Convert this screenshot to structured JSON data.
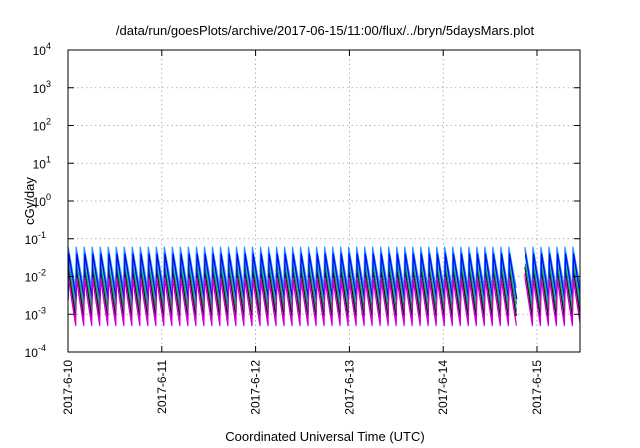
{
  "chart_data": {
    "type": "line",
    "title": "/data/run/goesPlots/archive/2017-06-15/11:00/flux/../bryn/5daysMars.plot",
    "xlabel": "Coordinated Universal Time (UTC)",
    "ylabel": "cGy/day",
    "yscale": "log",
    "ylim": [
      0.0001,
      10000
    ],
    "y_ticks": [
      {
        "value": 0.0001,
        "base": "10",
        "exp": "-4"
      },
      {
        "value": 0.001,
        "base": "10",
        "exp": "-3"
      },
      {
        "value": 0.01,
        "base": "10",
        "exp": "-2"
      },
      {
        "value": 0.1,
        "base": "10",
        "exp": "-1"
      },
      {
        "value": 1,
        "base": "10",
        "exp": "0"
      },
      {
        "value": 10,
        "base": "10",
        "exp": "1"
      },
      {
        "value": 100,
        "base": "10",
        "exp": "2"
      },
      {
        "value": 1000,
        "base": "10",
        "exp": "3"
      },
      {
        "value": 10000,
        "base": "10",
        "exp": "4"
      }
    ],
    "xlim": [
      "2017-06-10T00:00",
      "2017-06-15T11:00"
    ],
    "x_ticks": [
      "2017-6-10",
      "2017-6-11",
      "2017-6-12",
      "2017-6-13",
      "2017-6-14",
      "2017-6-15"
    ],
    "grid": true,
    "cycle_hours": 2.05,
    "gap": [
      "2017-06-14T17:30",
      "2017-06-14T20:30"
    ],
    "series": [
      {
        "color": "#ff00ff",
        "peak": 0.012,
        "trough": 0.0006,
        "phase": 0.0
      },
      {
        "color": "#000000",
        "peak": 0.018,
        "trough": 0.0009,
        "phase": 0.03
      },
      {
        "color": "#ff0000",
        "peak": 0.05,
        "trough": 0.002,
        "phase": 0.05
      },
      {
        "color": "#1e90ff",
        "peak": 0.06,
        "trough": 0.005,
        "phase": 0.02
      },
      {
        "color": "#00bfbf",
        "peak": 0.035,
        "trough": 0.0018,
        "phase": 0.08
      },
      {
        "color": "#2e8b57",
        "peak": 0.022,
        "trough": 0.0012,
        "phase": 0.06
      },
      {
        "color": "#0000ff",
        "peak": 0.04,
        "trough": 0.0025,
        "phase": 0.1
      },
      {
        "color": "#cc00cc",
        "peak": 0.009,
        "trough": 0.0005,
        "phase": 0.04
      }
    ]
  }
}
